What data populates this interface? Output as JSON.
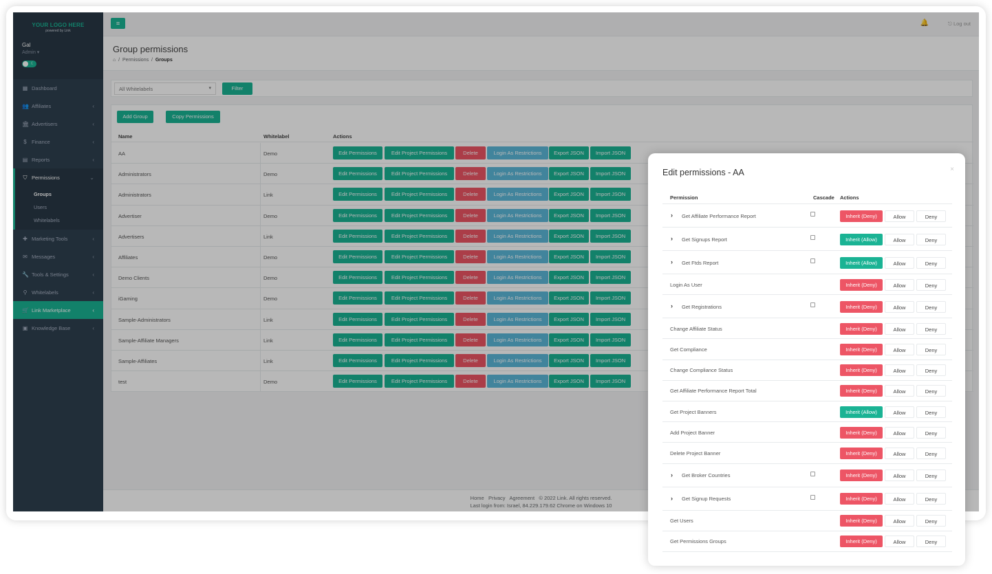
{
  "sidebar": {
    "logo": "YOUR LOGO HERE",
    "logo_sub": "powered by Link",
    "user_name": "Gal",
    "user_role": "Admin ▾",
    "items": [
      {
        "label": "Dashboard",
        "icon": "dashboard-icon",
        "glyph": "▦"
      },
      {
        "label": "Affiliates",
        "icon": "users-icon",
        "glyph": "👥"
      },
      {
        "label": "Advertisers",
        "icon": "bank-icon",
        "glyph": "🏛"
      },
      {
        "label": "Finance",
        "icon": "dollar-icon",
        "glyph": "$"
      },
      {
        "label": "Reports",
        "icon": "report-icon",
        "glyph": "▤"
      },
      {
        "label": "Permissions",
        "icon": "shield-icon",
        "glyph": "⛉"
      },
      {
        "label": "Marketing Tools",
        "icon": "puzzle-icon",
        "glyph": "✚"
      },
      {
        "label": "Messages",
        "icon": "chat-icon",
        "glyph": "✉"
      },
      {
        "label": "Tools & Settings",
        "icon": "wrench-icon",
        "glyph": "🔧"
      },
      {
        "label": "Whitelabels",
        "icon": "sitemap-icon",
        "glyph": "⚲"
      },
      {
        "label": "Link Marketplace",
        "icon": "basket-icon",
        "glyph": "🛒"
      },
      {
        "label": "Knowledge Base",
        "icon": "book-icon",
        "glyph": "▣"
      }
    ],
    "sub_items": [
      "Groups",
      "Users",
      "Whitelabels"
    ]
  },
  "topbar": {
    "logout": "⎋ Log out"
  },
  "heading": {
    "title": "Group permissions",
    "crumb_home": "⌂",
    "crumb_1": "Permissions",
    "crumb_2": "Groups"
  },
  "filter": {
    "select_value": "All Whitelabels",
    "button": "Filter"
  },
  "panel": {
    "add_group": "Add Group",
    "copy_permissions": "Copy Permissions",
    "columns": {
      "name": "Name",
      "whitelabel": "Whitelabel",
      "actions": "Actions"
    },
    "actions": {
      "edit": "Edit Permissions",
      "edit_project": "Edit Project Permissions",
      "delete": "Delete",
      "login": "Login As Restrictions",
      "export": "Export JSON",
      "import": "Import JSON"
    },
    "rows": [
      {
        "name": "AA",
        "whitelabel": "Demo"
      },
      {
        "name": "Administrators",
        "whitelabel": "Demo"
      },
      {
        "name": "Administrators",
        "whitelabel": "Link"
      },
      {
        "name": "Advertiser",
        "whitelabel": "Demo"
      },
      {
        "name": "Advertisers",
        "whitelabel": "Link"
      },
      {
        "name": "Affiliates",
        "whitelabel": "Demo"
      },
      {
        "name": "Demo Clients",
        "whitelabel": "Demo"
      },
      {
        "name": "iGaming",
        "whitelabel": "Demo"
      },
      {
        "name": "Sample-Administrators",
        "whitelabel": "Link"
      },
      {
        "name": "Sample-Affiliate Managers",
        "whitelabel": "Link"
      },
      {
        "name": "Sample-Affiliates",
        "whitelabel": "Link"
      },
      {
        "name": "test",
        "whitelabel": "Demo"
      }
    ]
  },
  "footer": {
    "home": "Home",
    "privacy": "Privacy",
    "agreement": "Agreement",
    "copyright": "© 2022 Link. All rights reserved.",
    "last_login": "Last login from: Israel, 84.229.179.62 Chrome on Windows 10"
  },
  "modal": {
    "title": "Edit permissions - AA",
    "close": "×",
    "columns": {
      "permission": "Permission",
      "cascade": "Cascade",
      "actions": "Actions"
    },
    "allow_label": "Allow",
    "deny_label": "Deny",
    "rows": [
      {
        "name": "Get Affiliate Performance Report",
        "expandable": true,
        "inherit": "Inherit (Deny)",
        "inherit_state": "deny"
      },
      {
        "name": "Get Signups Report",
        "expandable": true,
        "inherit": "Inherit (Allow)",
        "inherit_state": "allow"
      },
      {
        "name": "Get Ftds Report",
        "expandable": true,
        "inherit": "Inherit (Allow)",
        "inherit_state": "allow"
      },
      {
        "name": "Login As User",
        "expandable": false,
        "inherit": "Inherit (Deny)",
        "inherit_state": "deny"
      },
      {
        "name": "Get Registrations",
        "expandable": true,
        "inherit": "Inherit (Deny)",
        "inherit_state": "deny"
      },
      {
        "name": "Change Affiliate Status",
        "expandable": false,
        "inherit": "Inherit (Deny)",
        "inherit_state": "deny"
      },
      {
        "name": "Get Compliance",
        "expandable": false,
        "inherit": "Inherit (Deny)",
        "inherit_state": "deny"
      },
      {
        "name": "Change Compliance Status",
        "expandable": false,
        "inherit": "Inherit (Deny)",
        "inherit_state": "deny"
      },
      {
        "name": "Get Affiliate Performance Report Total",
        "expandable": false,
        "inherit": "Inherit (Deny)",
        "inherit_state": "deny"
      },
      {
        "name": "Get Project Banners",
        "expandable": false,
        "inherit": "Inherit (Allow)",
        "inherit_state": "allow"
      },
      {
        "name": "Add Project Banner",
        "expandable": false,
        "inherit": "Inherit (Deny)",
        "inherit_state": "deny"
      },
      {
        "name": "Delete Project Banner",
        "expandable": false,
        "inherit": "Inherit (Deny)",
        "inherit_state": "deny"
      },
      {
        "name": "Get Broker Countries",
        "expandable": true,
        "inherit": "Inherit (Deny)",
        "inherit_state": "deny"
      },
      {
        "name": "Get Signup Requests",
        "expandable": true,
        "inherit": "Inherit (Deny)",
        "inherit_state": "deny"
      },
      {
        "name": "Get Users",
        "expandable": false,
        "inherit": "Inherit (Deny)",
        "inherit_state": "deny"
      },
      {
        "name": "Get Permissions Groups",
        "expandable": false,
        "inherit": "Inherit (Deny)",
        "inherit_state": "deny"
      }
    ]
  }
}
